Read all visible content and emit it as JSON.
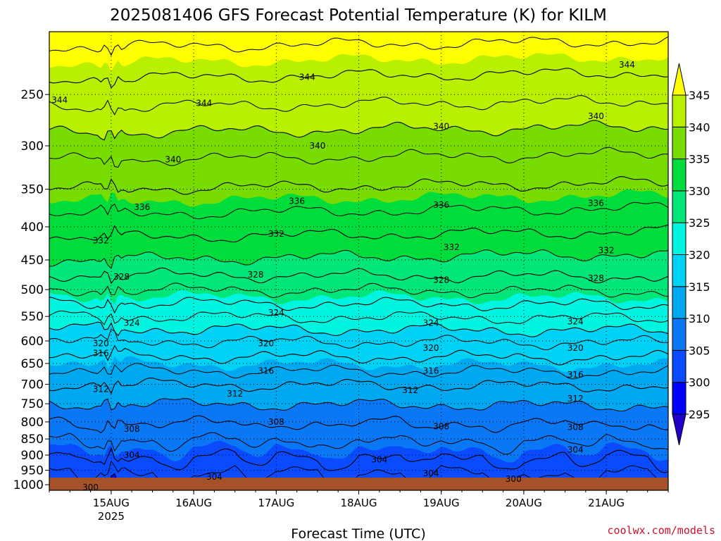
{
  "chart_data": {
    "type": "heatmap",
    "title": "2025081406 GFS Forecast Potential Temperature (K) for KILM",
    "xlabel": "Forecast Time (UTC)",
    "ylabel": "",
    "credit": "coolwx.com/models",
    "x_ticks": [
      {
        "label": "15AUG",
        "sublabel": "2025",
        "time": "2025-08-15T00Z"
      },
      {
        "label": "16AUG",
        "sublabel": "",
        "time": "2025-08-16T00Z"
      },
      {
        "label": "17AUG",
        "sublabel": "",
        "time": "2025-08-17T00Z"
      },
      {
        "label": "18AUG",
        "sublabel": "",
        "time": "2025-08-18T00Z"
      },
      {
        "label": "19AUG",
        "sublabel": "",
        "time": "2025-08-19T00Z"
      },
      {
        "label": "20AUG",
        "sublabel": "",
        "time": "2025-08-20T00Z"
      },
      {
        "label": "21AUG",
        "sublabel": "",
        "time": "2025-08-21T00Z"
      }
    ],
    "xlim": [
      "2025-08-14T06Z",
      "2025-08-21T18Z"
    ],
    "y_ticks": [
      250,
      300,
      350,
      400,
      450,
      500,
      550,
      600,
      650,
      700,
      750,
      800,
      850,
      900,
      950,
      1000
    ],
    "y_scale": "log",
    "y_inverted": true,
    "ylim": [
      1020,
      200
    ],
    "grid": "dotted",
    "colorbar": {
      "levels": [
        295,
        300,
        305,
        310,
        315,
        320,
        325,
        330,
        335,
        340,
        345
      ],
      "colors": [
        "#1e00c8",
        "#0000ff",
        "#0a4bff",
        "#0a78f5",
        "#00a8f0",
        "#00d2f5",
        "#00f5e1",
        "#00e678",
        "#00dc3c",
        "#78dc00",
        "#b9f000",
        "#ffff00"
      ],
      "extend": "both",
      "position": "right"
    },
    "contour_levels": [
      300,
      304,
      308,
      312,
      316,
      320,
      324,
      328,
      332,
      336,
      340,
      344
    ],
    "profile": {
      "pressure": [
        1000,
        950,
        900,
        850,
        800,
        750,
        700,
        650,
        600,
        550,
        500,
        450,
        400,
        350,
        300,
        250,
        200
      ],
      "theta": [
        300,
        302,
        304,
        306,
        308,
        310,
        312,
        315,
        318,
        322,
        326,
        330,
        333,
        336,
        339,
        343,
        347
      ]
    },
    "contour_labels": [
      {
        "text": "344",
        "time": "2025-08-14T09Z",
        "p": 255
      },
      {
        "text": "344",
        "time": "2025-08-16T03Z",
        "p": 258
      },
      {
        "text": "344",
        "time": "2025-08-17T09Z",
        "p": 235
      },
      {
        "text": "344",
        "time": "2025-08-21T06Z",
        "p": 225
      },
      {
        "text": "340",
        "time": "2025-08-15T18Z",
        "p": 315
      },
      {
        "text": "340",
        "time": "2025-08-17T12Z",
        "p": 300
      },
      {
        "text": "340",
        "time": "2025-08-19T00Z",
        "p": 280
      },
      {
        "text": "340",
        "time": "2025-08-20T21Z",
        "p": 270
      },
      {
        "text": "336",
        "time": "2025-08-15T09Z",
        "p": 373
      },
      {
        "text": "336",
        "time": "2025-08-17T06Z",
        "p": 365
      },
      {
        "text": "336",
        "time": "2025-08-19T00Z",
        "p": 370
      },
      {
        "text": "336",
        "time": "2025-08-20T21Z",
        "p": 368
      },
      {
        "text": "332",
        "time": "2025-08-14T21Z",
        "p": 420
      },
      {
        "text": "332",
        "time": "2025-08-17T00Z",
        "p": 410
      },
      {
        "text": "332",
        "time": "2025-08-19T03Z",
        "p": 430
      },
      {
        "text": "332",
        "time": "2025-08-21T00Z",
        "p": 435
      },
      {
        "text": "328",
        "time": "2025-08-15T03Z",
        "p": 478
      },
      {
        "text": "328",
        "time": "2025-08-16T18Z",
        "p": 474
      },
      {
        "text": "328",
        "time": "2025-08-19T00Z",
        "p": 483
      },
      {
        "text": "328",
        "time": "2025-08-20T21Z",
        "p": 480
      },
      {
        "text": "324",
        "time": "2025-08-15T06Z",
        "p": 563
      },
      {
        "text": "324",
        "time": "2025-08-17T00Z",
        "p": 543
      },
      {
        "text": "324",
        "time": "2025-08-18T21Z",
        "p": 563
      },
      {
        "text": "324",
        "time": "2025-08-20T15Z",
        "p": 560
      },
      {
        "text": "320",
        "time": "2025-08-14T21Z",
        "p": 605
      },
      {
        "text": "320",
        "time": "2025-08-16T21Z",
        "p": 605
      },
      {
        "text": "320",
        "time": "2025-08-18T21Z",
        "p": 615
      },
      {
        "text": "320",
        "time": "2025-08-20T15Z",
        "p": 615
      },
      {
        "text": "316",
        "time": "2025-08-14T21Z",
        "p": 627
      },
      {
        "text": "316",
        "time": "2025-08-16T21Z",
        "p": 667
      },
      {
        "text": "316",
        "time": "2025-08-18T21Z",
        "p": 667
      },
      {
        "text": "316",
        "time": "2025-08-20T15Z",
        "p": 677
      },
      {
        "text": "312",
        "time": "2025-08-14T21Z",
        "p": 712
      },
      {
        "text": "312",
        "time": "2025-08-16T12Z",
        "p": 724
      },
      {
        "text": "312",
        "time": "2025-08-18T15Z",
        "p": 715
      },
      {
        "text": "312",
        "time": "2025-08-20T15Z",
        "p": 737
      },
      {
        "text": "308",
        "time": "2025-08-15T06Z",
        "p": 820
      },
      {
        "text": "308",
        "time": "2025-08-17T00Z",
        "p": 800
      },
      {
        "text": "308",
        "time": "2025-08-19T00Z",
        "p": 813
      },
      {
        "text": "308",
        "time": "2025-08-20T15Z",
        "p": 815
      },
      {
        "text": "304",
        "time": "2025-08-15T06Z",
        "p": 900
      },
      {
        "text": "304",
        "time": "2025-08-16T06Z",
        "p": 973
      },
      {
        "text": "304",
        "time": "2025-08-18T06Z",
        "p": 915
      },
      {
        "text": "304",
        "time": "2025-08-18T21Z",
        "p": 960
      },
      {
        "text": "304",
        "time": "2025-08-20T15Z",
        "p": 883
      },
      {
        "text": "300",
        "time": "2025-08-14T18Z",
        "p": 1010
      },
      {
        "text": "300",
        "time": "2025-08-19T21Z",
        "p": 980
      }
    ]
  }
}
